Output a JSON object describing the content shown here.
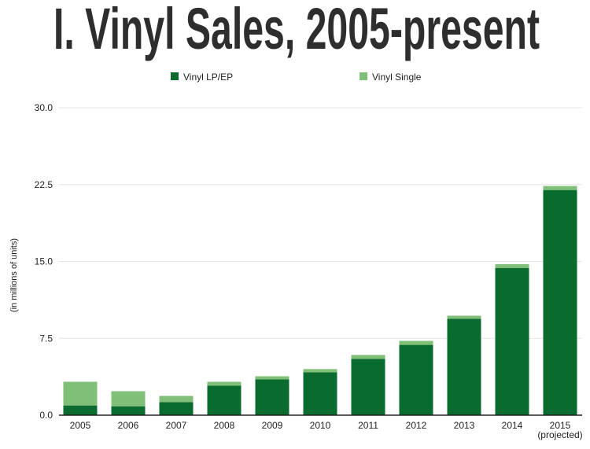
{
  "chart_data": {
    "type": "bar",
    "stacked": true,
    "title": "I. Vinyl Sales, 2005-present",
    "xlabel": "",
    "ylabel": "(in millions of units)",
    "ylim": [
      0,
      30
    ],
    "yticks": [
      "0.0",
      "7.5",
      "15.0",
      "22.5",
      "30.0"
    ],
    "grid": true,
    "legend_position": "top",
    "categories": [
      "2005",
      "2006",
      "2007",
      "2008",
      "2009",
      "2010",
      "2011",
      "2012",
      "2013",
      "2014",
      "2015"
    ],
    "category_sublabels": [
      "",
      "",
      "",
      "",
      "",
      "",
      "",
      "",
      "",
      "",
      "(projected)"
    ],
    "series": [
      {
        "name": "Vinyl LP/EP",
        "color": "#0a6b2e",
        "values": [
          0.95,
          0.87,
          1.28,
          2.88,
          3.5,
          4.19,
          5.5,
          6.86,
          9.41,
          14.37,
          21.97
        ]
      },
      {
        "name": "Vinyl Single",
        "color": "#80bf78",
        "values": [
          2.31,
          1.47,
          0.6,
          0.38,
          0.3,
          0.31,
          0.38,
          0.39,
          0.3,
          0.36,
          0.39
        ]
      }
    ]
  }
}
